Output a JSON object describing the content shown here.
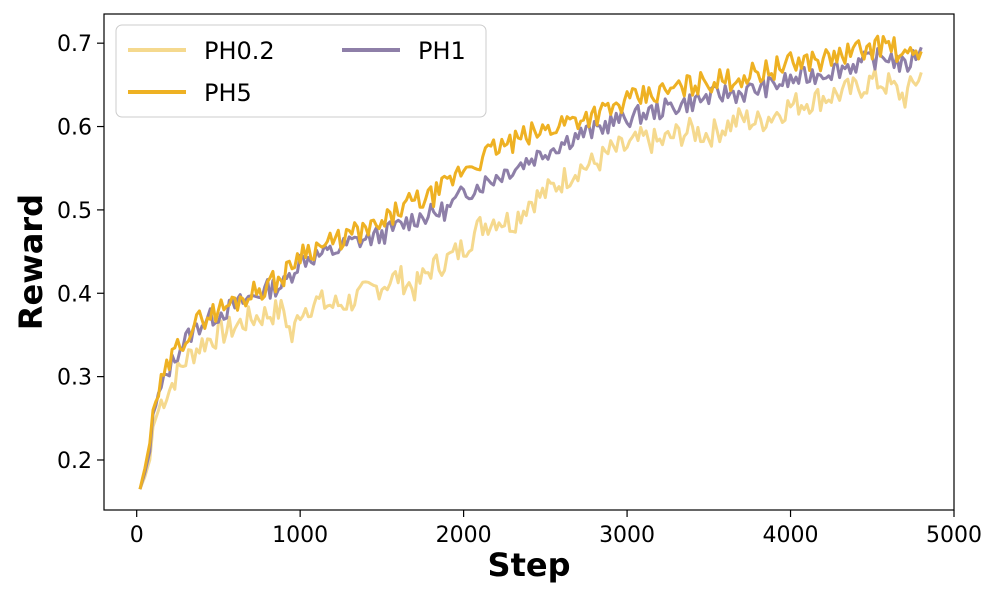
{
  "chart_data": {
    "type": "line",
    "title": "",
    "xlabel": "Step",
    "ylabel": "Reward",
    "xlim": [
      -200,
      5000
    ],
    "ylim": [
      0.14,
      0.735
    ],
    "xticks": [
      0,
      1000,
      2000,
      3000,
      4000,
      5000
    ],
    "yticks": [
      0.2,
      0.3,
      0.4,
      0.5,
      0.6,
      0.7
    ],
    "xtick_labels": [
      "0",
      "1000",
      "2000",
      "3000",
      "4000",
      "5000"
    ],
    "ytick_labels": [
      "0.2",
      "0.3",
      "0.4",
      "0.5",
      "0.6",
      "0.7"
    ],
    "grid": false,
    "legend_position": "top-left",
    "series": [
      {
        "name": "PH0.2",
        "color": "#f5d98e",
        "x": [
          20,
          50,
          80,
          100,
          150,
          200,
          250,
          300,
          350,
          400,
          450,
          500,
          600,
          700,
          800,
          900,
          950,
          1000,
          1100,
          1200,
          1300,
          1400,
          1500,
          1600,
          1700,
          1800,
          1900,
          2000,
          2100,
          2200,
          2300,
          2400,
          2500,
          2600,
          2700,
          2800,
          2900,
          3000,
          3100,
          3200,
          3300,
          3400,
          3500,
          3600,
          3700,
          3800,
          3900,
          4000,
          4100,
          4200,
          4300,
          4400,
          4500,
          4600,
          4700,
          4800
        ],
        "values": [
          0.165,
          0.18,
          0.2,
          0.24,
          0.27,
          0.285,
          0.305,
          0.32,
          0.33,
          0.34,
          0.345,
          0.35,
          0.36,
          0.37,
          0.375,
          0.38,
          0.345,
          0.38,
          0.39,
          0.385,
          0.39,
          0.4,
          0.41,
          0.42,
          0.405,
          0.43,
          0.44,
          0.455,
          0.48,
          0.49,
          0.485,
          0.51,
          0.52,
          0.535,
          0.55,
          0.555,
          0.57,
          0.575,
          0.585,
          0.58,
          0.59,
          0.595,
          0.59,
          0.6,
          0.61,
          0.605,
          0.615,
          0.625,
          0.63,
          0.635,
          0.64,
          0.645,
          0.655,
          0.65,
          0.635,
          0.665
        ]
      },
      {
        "name": "PH1",
        "color": "#8e7fa8",
        "x": [
          20,
          50,
          80,
          100,
          150,
          200,
          250,
          300,
          350,
          400,
          450,
          500,
          600,
          700,
          800,
          900,
          1000,
          1100,
          1200,
          1300,
          1400,
          1500,
          1600,
          1700,
          1800,
          1900,
          2000,
          2100,
          2200,
          2300,
          2400,
          2500,
          2600,
          2700,
          2800,
          2900,
          3000,
          3100,
          3200,
          3300,
          3400,
          3500,
          3600,
          3700,
          3800,
          3900,
          4000,
          4100,
          4200,
          4300,
          4400,
          4500,
          4600,
          4700,
          4800
        ],
        "values": [
          0.165,
          0.185,
          0.21,
          0.255,
          0.285,
          0.31,
          0.33,
          0.345,
          0.355,
          0.365,
          0.37,
          0.375,
          0.385,
          0.395,
          0.405,
          0.41,
          0.44,
          0.445,
          0.45,
          0.46,
          0.465,
          0.47,
          0.48,
          0.49,
          0.495,
          0.5,
          0.52,
          0.53,
          0.54,
          0.55,
          0.56,
          0.57,
          0.58,
          0.59,
          0.595,
          0.605,
          0.61,
          0.615,
          0.62,
          0.625,
          0.63,
          0.635,
          0.64,
          0.64,
          0.645,
          0.65,
          0.655,
          0.66,
          0.665,
          0.67,
          0.675,
          0.68,
          0.685,
          0.67,
          0.695
        ]
      },
      {
        "name": "PH5",
        "color": "#eeb123",
        "x": [
          20,
          50,
          80,
          100,
          150,
          200,
          250,
          300,
          350,
          400,
          450,
          500,
          600,
          700,
          800,
          900,
          1000,
          1100,
          1200,
          1300,
          1400,
          1500,
          1600,
          1700,
          1800,
          1900,
          2000,
          2100,
          2200,
          2300,
          2400,
          2500,
          2600,
          2700,
          2800,
          2900,
          3000,
          3100,
          3200,
          3300,
          3400,
          3500,
          3600,
          3700,
          3800,
          3900,
          4000,
          4100,
          4200,
          4300,
          4400,
          4500,
          4600,
          4700,
          4800
        ],
        "values": [
          0.165,
          0.19,
          0.22,
          0.26,
          0.29,
          0.315,
          0.335,
          0.35,
          0.36,
          0.37,
          0.375,
          0.38,
          0.39,
          0.4,
          0.41,
          0.42,
          0.45,
          0.455,
          0.46,
          0.47,
          0.475,
          0.48,
          0.5,
          0.51,
          0.515,
          0.53,
          0.55,
          0.56,
          0.575,
          0.58,
          0.59,
          0.595,
          0.605,
          0.61,
          0.615,
          0.62,
          0.63,
          0.635,
          0.64,
          0.645,
          0.65,
          0.655,
          0.655,
          0.66,
          0.665,
          0.67,
          0.675,
          0.68,
          0.68,
          0.685,
          0.69,
          0.695,
          0.7,
          0.68,
          0.69
        ]
      }
    ]
  }
}
